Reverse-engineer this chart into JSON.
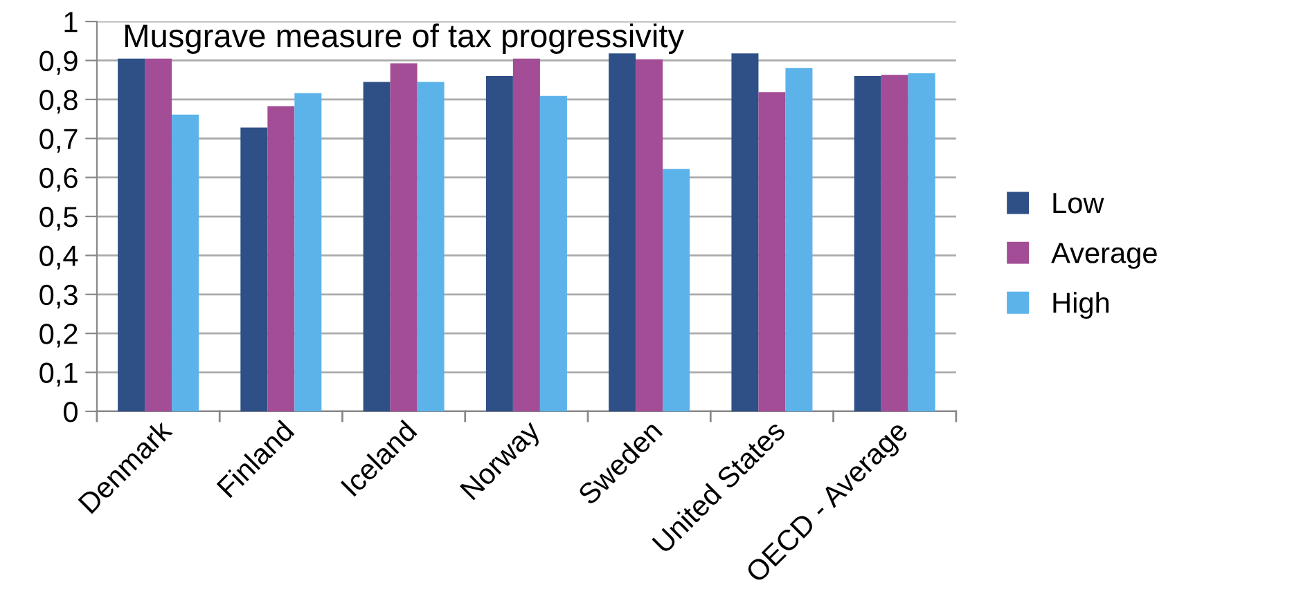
{
  "chart_data": {
    "type": "bar",
    "title": "Musgrave measure of tax progressivity",
    "categories": [
      "Denmark",
      "Finland",
      "Iceland",
      "Norway",
      "Sweden",
      "United States",
      "OECD - Average"
    ],
    "series": [
      {
        "name": "Low",
        "color": "#2f4f87",
        "values": [
          0.905,
          0.728,
          0.845,
          0.86,
          0.918,
          0.918,
          0.86
        ]
      },
      {
        "name": "Average",
        "color": "#a24d96",
        "values": [
          0.905,
          0.783,
          0.893,
          0.905,
          0.903,
          0.819,
          0.863
        ]
      },
      {
        "name": "High",
        "color": "#5bb3ea",
        "values": [
          0.761,
          0.816,
          0.845,
          0.809,
          0.622,
          0.881,
          0.867
        ]
      }
    ],
    "ylim": [
      0,
      1
    ],
    "yticks": [
      0,
      {
        "value": 0.1,
        "label": "0,1"
      },
      {
        "value": 0.2,
        "label": "0,2"
      },
      {
        "value": 0.3,
        "label": "0,3"
      },
      {
        "value": 0.4,
        "label": "0,4"
      },
      {
        "value": 0.5,
        "label": "0,5"
      },
      {
        "value": 0.6,
        "label": "0,6"
      },
      {
        "value": 0.7,
        "label": "0,7"
      },
      {
        "value": 0.8,
        "label": "0,8"
      },
      {
        "value": 0.9,
        "label": "0,9"
      },
      1
    ],
    "grid": "y",
    "legend": "right"
  }
}
